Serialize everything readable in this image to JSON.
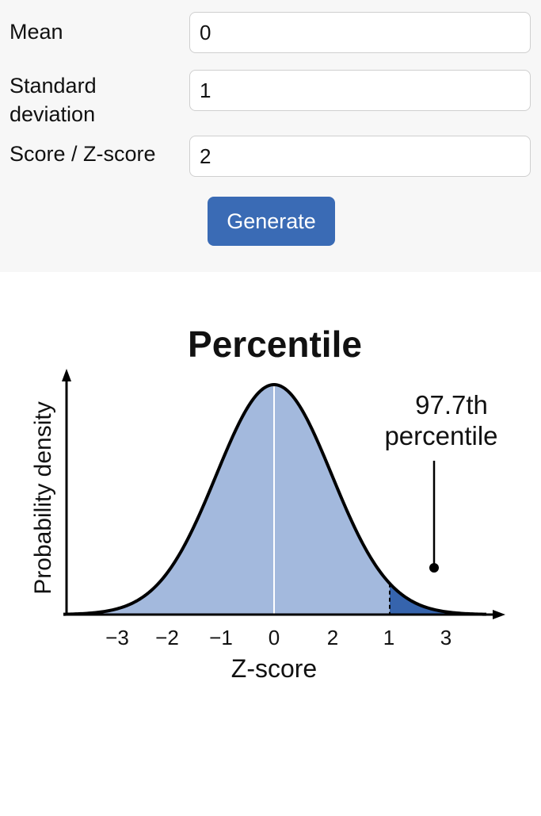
{
  "form": {
    "mean_label": "Mean",
    "mean_value": "0",
    "sd_label_line1": "Standard",
    "sd_label_line2": "deviation",
    "sd_value": "1",
    "score_label": "Score / Z-score",
    "score_value": "2",
    "generate_label": "Generate"
  },
  "colors": {
    "accent": "#3a6bb5",
    "area_fill": "#a3b9dd",
    "tail_fill": "#3664ad",
    "curve": "#000000"
  },
  "chart_data": {
    "type": "area",
    "title": "Percentile",
    "xlabel": "Z-score",
    "ylabel": "Probability density",
    "distribution": "normal",
    "mean": 0,
    "sd": 1,
    "score": 2,
    "x_tick_labels": [
      "−3",
      "−2",
      "−1",
      "0",
      "2",
      "1",
      "3"
    ],
    "annotation": {
      "line1": "97.7th",
      "line2": "percentile",
      "value": 97.7
    },
    "grid": false
  }
}
